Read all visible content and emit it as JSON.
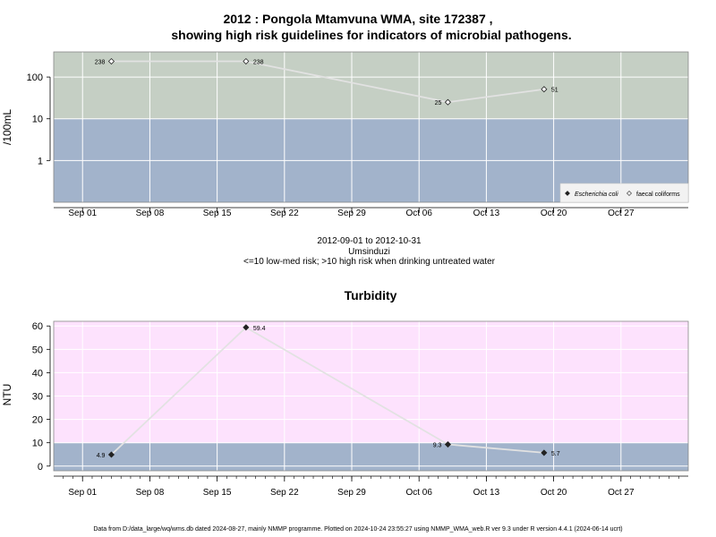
{
  "title_line1": "2012 : Pongola Mtamvuna WMA, site 172387 ,",
  "title_line2": "showing high risk guidelines for indicators of microbial pathogens.",
  "period": "2012-09-01 to 2012-10-31",
  "river": "Umsinduzi",
  "risk_note": "<=10 low-med risk; >10 high risk when drinking untreated water",
  "turbidity_title": "Turbidity",
  "footer": "Data from D:/data_large/wq/wms.db dated 2024-08-27, mainly NMMP programme. Plotted on 2024-10-24 23:55:27 using NMMP_WMA_web.R ver 9.3 under R version 4.4.1 (2024-06-14 ucrt)",
  "chart_data": [
    {
      "type": "line",
      "name": "microbial",
      "ylabel": "/100mL",
      "yscale": "log",
      "yticks": [
        1,
        10,
        100
      ],
      "ylim": [
        0.1,
        400
      ],
      "threshold": 10,
      "x_ticks": [
        "Sep 01",
        "Sep 08",
        "Sep 15",
        "Sep 22",
        "Sep 29",
        "Oct 06",
        "Oct 13",
        "Oct 20",
        "Oct 27"
      ],
      "x_tick_dates": [
        "2012-09-01",
        "2012-09-08",
        "2012-09-15",
        "2012-09-22",
        "2012-09-29",
        "2012-10-06",
        "2012-10-13",
        "2012-10-20",
        "2012-10-27"
      ],
      "xlim": [
        "2012-08-29",
        "2012-11-03"
      ],
      "legend": {
        "placement": "bottom-right",
        "entries": [
          "Escherichia coli",
          "faecal coliforms"
        ]
      },
      "series": [
        {
          "name": "faecal coliforms",
          "marker": "open-diamond",
          "points": [
            {
              "x": "2012-09-04",
              "y": 238,
              "label": "238"
            },
            {
              "x": "2012-09-18",
              "y": 238,
              "label": "238"
            },
            {
              "x": "2012-10-09",
              "y": 25,
              "label": "25"
            },
            {
              "x": "2012-10-19",
              "y": 51,
              "label": "51"
            }
          ]
        }
      ],
      "colors": {
        "high": "#c5cfc4",
        "low": "#a2b3cb",
        "line": "#e2e2e2",
        "grid": "#ffffff"
      }
    },
    {
      "type": "line",
      "name": "turbidity",
      "ylabel": "NTU",
      "yscale": "linear",
      "yticks": [
        0,
        10,
        20,
        30,
        40,
        50,
        60
      ],
      "ylim": [
        -2,
        62
      ],
      "threshold": 10,
      "x_ticks": [
        "Sep 01",
        "Sep 08",
        "Sep 15",
        "Sep 22",
        "Sep 29",
        "Oct 06",
        "Oct 13",
        "Oct 20",
        "Oct 27"
      ],
      "x_tick_dates": [
        "2012-09-01",
        "2012-09-08",
        "2012-09-15",
        "2012-09-22",
        "2012-09-29",
        "2012-10-06",
        "2012-10-13",
        "2012-10-20",
        "2012-10-27"
      ],
      "xlim": [
        "2012-08-29",
        "2012-11-03"
      ],
      "series": [
        {
          "name": "turbidity",
          "marker": "filled-diamond",
          "points": [
            {
              "x": "2012-09-04",
              "y": 4.9,
              "label": "4.9"
            },
            {
              "x": "2012-09-18",
              "y": 59.4,
              "label": "59.4"
            },
            {
              "x": "2012-10-09",
              "y": 9.3,
              "label": "9.3"
            },
            {
              "x": "2012-10-19",
              "y": 5.7,
              "label": "5.7"
            }
          ]
        }
      ],
      "colors": {
        "high": "#fde2fd",
        "low": "#a2b3cb",
        "line": "#e2e2e2",
        "grid": "#ffffff"
      }
    }
  ]
}
